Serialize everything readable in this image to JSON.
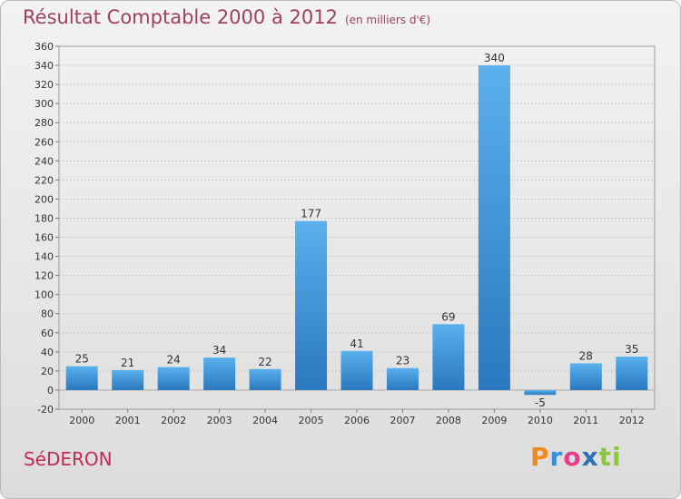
{
  "title": "Résultat Comptable 2000 à 2012",
  "subtitle": "(en milliers d'€)",
  "city": "SéDERON",
  "logo": {
    "p": "P",
    "r": "r",
    "o": "o",
    "x": "x",
    "i": "i",
    "ti": "ti"
  },
  "colors": {
    "bar": "#3d8fd6",
    "bar_light": "#5aaeea",
    "title": "#a0405a",
    "city": "#c02a55"
  },
  "chart_data": {
    "type": "bar",
    "categories": [
      "2000",
      "2001",
      "2002",
      "2003",
      "2004",
      "2005",
      "2006",
      "2007",
      "2008",
      "2009",
      "2010",
      "2011",
      "2012"
    ],
    "values": [
      25,
      21,
      24,
      34,
      22,
      177,
      41,
      23,
      69,
      340,
      -5,
      28,
      35
    ],
    "title": "Résultat Comptable 2000 à 2012",
    "xlabel": "",
    "ylabel": "",
    "ylim": [
      -20,
      360
    ],
    "yticks": [
      -20,
      0,
      20,
      40,
      60,
      80,
      100,
      120,
      140,
      160,
      180,
      200,
      220,
      240,
      260,
      280,
      300,
      320,
      340,
      360
    ],
    "grid": true,
    "legend": "none"
  }
}
